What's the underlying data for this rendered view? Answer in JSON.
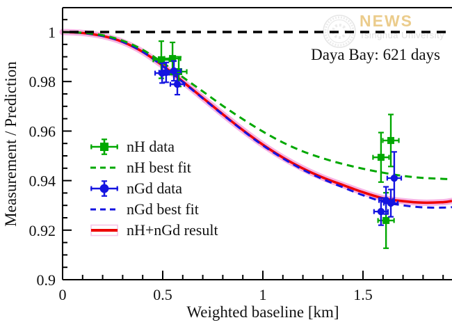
{
  "colors": {
    "green": "#00a800",
    "blue": "#1414e0",
    "red": "#ee0000",
    "pink_band": "#f7b3e4",
    "pink_box": "#f5c6ea",
    "frame": "#000000",
    "gold": "#e8c478",
    "watermark_gray": "#d9d9d9"
  },
  "watermark": {
    "title": "NEWS",
    "subtitle": "Tsinghua University"
  },
  "annotation": {
    "label": "Daya Bay: 621 days"
  },
  "legend": {
    "items": [
      {
        "label": "nH data"
      },
      {
        "label": "nH best fit"
      },
      {
        "label": "nGd data"
      },
      {
        "label": "nGd best fit"
      },
      {
        "label": "nH+nGd result"
      }
    ]
  },
  "chart_data": {
    "type": "line",
    "title": "",
    "xlabel": "Weighted baseline [km]",
    "ylabel": "Measurement / Prediction",
    "xlim": [
      0,
      1.944
    ],
    "ylim": [
      0.9,
      1.0104
    ],
    "grid": false,
    "legend_position": "center-left",
    "xticks": [
      {
        "v": 0,
        "label": "0"
      },
      {
        "v": 0.5,
        "label": "0.5"
      },
      {
        "v": 1,
        "label": "1"
      },
      {
        "v": 1.5,
        "label": "1.5"
      }
    ],
    "yticks": [
      {
        "v": 0.9,
        "label": "0.9"
      },
      {
        "v": 0.92,
        "label": "0.92"
      },
      {
        "v": 0.94,
        "label": "0.94"
      },
      {
        "v": 0.96,
        "label": "0.96"
      },
      {
        "v": 0.98,
        "label": "0.98"
      },
      {
        "v": 1,
        "label": "1"
      }
    ],
    "x_minor_step": 0.1,
    "y_minor_step": 0.005,
    "reference_line": {
      "y": 1.0,
      "style": "dashed",
      "color": "#000000"
    },
    "series": [
      {
        "name": "nH best fit",
        "type": "line",
        "style": "dashed",
        "color": "green",
        "x": [
          0,
          0.1,
          0.2,
          0.3,
          0.4,
          0.5,
          0.6,
          0.7,
          0.8,
          0.9,
          1.0,
          1.1,
          1.2,
          1.3,
          1.4,
          1.5,
          1.6,
          1.7,
          1.8,
          1.9,
          1.944
        ],
        "y": [
          1.0,
          0.9997,
          0.9987,
          0.9965,
          0.9928,
          0.9876,
          0.9818,
          0.976,
          0.9702,
          0.9648,
          0.9598,
          0.9554,
          0.9518,
          0.949,
          0.9467,
          0.9448,
          0.9432,
          0.9419,
          0.9411,
          0.9407,
          0.9406
        ]
      },
      {
        "name": "nGd best fit",
        "type": "line",
        "style": "dashed",
        "color": "blue",
        "x": [
          0,
          0.1,
          0.2,
          0.3,
          0.4,
          0.5,
          0.6,
          0.7,
          0.8,
          0.9,
          1.0,
          1.1,
          1.2,
          1.3,
          1.4,
          1.5,
          1.6,
          1.7,
          1.8,
          1.9,
          1.944
        ],
        "y": [
          1.0,
          0.9996,
          0.9984,
          0.996,
          0.992,
          0.9862,
          0.9798,
          0.9732,
          0.9666,
          0.9602,
          0.9542,
          0.949,
          0.9444,
          0.9406,
          0.9373,
          0.9341,
          0.9315,
          0.93,
          0.9292,
          0.9291,
          0.9293
        ]
      },
      {
        "name": "nH+nGd result",
        "type": "line",
        "style": "solid",
        "color": "red",
        "band_halfwidth": 0.0013,
        "x": [
          0,
          0.1,
          0.2,
          0.3,
          0.4,
          0.5,
          0.6,
          0.7,
          0.8,
          0.9,
          1.0,
          1.1,
          1.2,
          1.3,
          1.4,
          1.5,
          1.6,
          1.7,
          1.8,
          1.9,
          1.944
        ],
        "y": [
          1.0,
          0.9996,
          0.9984,
          0.996,
          0.992,
          0.9864,
          0.98,
          0.9734,
          0.9668,
          0.9604,
          0.9545,
          0.9493,
          0.9449,
          0.9412,
          0.9382,
          0.9353,
          0.9329,
          0.9317,
          0.9311,
          0.9313,
          0.9318
        ]
      },
      {
        "name": "nH data",
        "type": "scatter",
        "marker": "square",
        "color": "green",
        "points": [
          {
            "x": 0.493,
            "y": 0.9888,
            "ey": 0.0075,
            "ex": 0.04
          },
          {
            "x": 0.549,
            "y": 0.9893,
            "ey": 0.0065,
            "ex": 0.04
          },
          {
            "x": 0.58,
            "y": 0.984,
            "ey": 0.006,
            "ex": 0.04
          },
          {
            "x": 1.59,
            "y": 0.9494,
            "ey": 0.01,
            "ex": 0.04
          },
          {
            "x": 1.615,
            "y": 0.9239,
            "ey": 0.0112,
            "ex": 0.04
          },
          {
            "x": 1.639,
            "y": 0.9562,
            "ey": 0.0105,
            "ex": 0.04
          }
        ]
      },
      {
        "name": "nGd data",
        "type": "scatter",
        "marker": "circle",
        "color": "blue",
        "points": [
          {
            "x": 0.497,
            "y": 0.9834,
            "ey": 0.004,
            "ex": 0.035
          },
          {
            "x": 0.517,
            "y": 0.9837,
            "ey": 0.004,
            "ex": 0.035
          },
          {
            "x": 0.556,
            "y": 0.9843,
            "ey": 0.004,
            "ex": 0.035
          },
          {
            "x": 0.573,
            "y": 0.9789,
            "ey": 0.0042,
            "ex": 0.035
          },
          {
            "x": 1.59,
            "y": 0.9275,
            "ey": 0.0055,
            "ex": 0.035
          },
          {
            "x": 1.615,
            "y": 0.932,
            "ey": 0.0055,
            "ex": 0.035
          },
          {
            "x": 1.639,
            "y": 0.9309,
            "ey": 0.0055,
            "ex": 0.035
          },
          {
            "x": 1.656,
            "y": 0.941,
            "ey": 0.0106,
            "ex": 0.035
          }
        ]
      }
    ]
  }
}
